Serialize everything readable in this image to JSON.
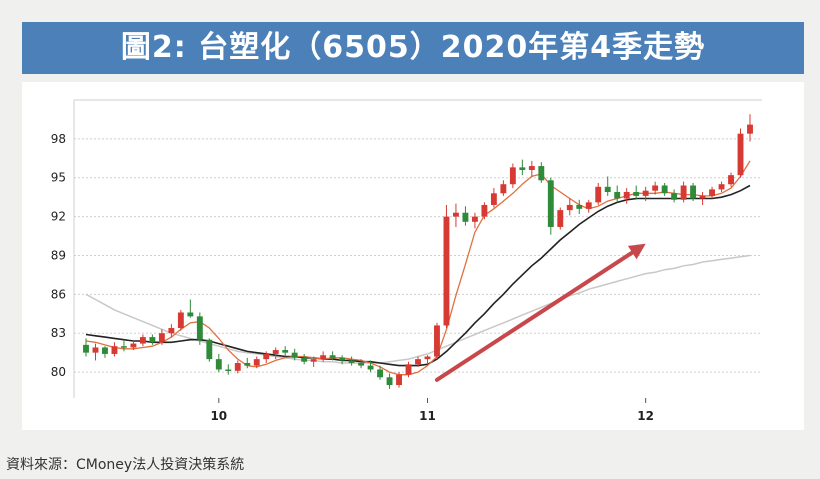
{
  "title": "圖2: 台塑化（6505）2020年第4季走勢",
  "source": "資料來源：CMoney法人投資決策系統",
  "colors": {
    "up": "#d63a32",
    "down": "#2f8a3a",
    "ma_short": "#e07040",
    "ma_mid": "#222222",
    "ma_long": "#c8c8c8",
    "arrow": "#c8474a",
    "grid": "#cfcfcf",
    "title_bg": "#4b80b8"
  },
  "chart_data": {
    "type": "candlestick",
    "ylim": [
      78,
      101
    ],
    "y_ticks": [
      80,
      83,
      86,
      89,
      92,
      95,
      98
    ],
    "x_ticks": [
      {
        "label": "10",
        "index": 14
      },
      {
        "label": "11",
        "index": 36
      },
      {
        "label": "12",
        "index": 59
      }
    ],
    "n": 71,
    "grid": "horizontal",
    "candles": [
      [
        82.1,
        82.6,
        81.2,
        81.5
      ],
      [
        81.5,
        82.2,
        80.9,
        81.9
      ],
      [
        81.9,
        82.0,
        81.1,
        81.4
      ],
      [
        81.4,
        82.3,
        81.2,
        82.0
      ],
      [
        82.0,
        82.5,
        81.6,
        81.9
      ],
      [
        81.9,
        82.4,
        81.7,
        82.2
      ],
      [
        82.2,
        82.9,
        82.0,
        82.7
      ],
      [
        82.7,
        82.9,
        82.1,
        82.3
      ],
      [
        82.3,
        83.3,
        82.1,
        83.0
      ],
      [
        83.0,
        83.7,
        82.7,
        83.4
      ],
      [
        83.4,
        84.8,
        83.2,
        84.6
      ],
      [
        84.6,
        85.6,
        84.2,
        84.3
      ],
      [
        84.3,
        84.6,
        82.1,
        82.5
      ],
      [
        82.5,
        82.6,
        80.8,
        81.0
      ],
      [
        81.0,
        81.4,
        80.0,
        80.2
      ],
      [
        80.2,
        80.6,
        79.8,
        80.1
      ],
      [
        80.1,
        80.9,
        79.9,
        80.7
      ],
      [
        80.7,
        81.1,
        80.3,
        80.5
      ],
      [
        80.5,
        81.2,
        80.3,
        81.0
      ],
      [
        81.0,
        81.6,
        80.7,
        81.4
      ],
      [
        81.4,
        81.9,
        81.0,
        81.7
      ],
      [
        81.7,
        82.0,
        81.2,
        81.5
      ],
      [
        81.5,
        81.8,
        80.9,
        81.1
      ],
      [
        81.1,
        81.4,
        80.6,
        80.8
      ],
      [
        80.8,
        81.2,
        80.4,
        81.0
      ],
      [
        81.0,
        81.6,
        80.8,
        81.3
      ],
      [
        81.3,
        81.6,
        80.9,
        81.1
      ],
      [
        81.1,
        81.3,
        80.6,
        80.9
      ],
      [
        80.9,
        81.2,
        80.5,
        80.7
      ],
      [
        80.7,
        81.0,
        80.3,
        80.5
      ],
      [
        80.5,
        80.9,
        80.0,
        80.2
      ],
      [
        80.2,
        80.5,
        79.4,
        79.6
      ],
      [
        79.6,
        79.9,
        78.7,
        79.0
      ],
      [
        79.0,
        80.0,
        78.8,
        79.8
      ],
      [
        79.8,
        80.8,
        79.6,
        80.6
      ],
      [
        80.6,
        81.2,
        80.4,
        81.0
      ],
      [
        81.0,
        81.3,
        80.7,
        81.2
      ],
      [
        81.2,
        83.8,
        81.0,
        83.6
      ],
      [
        83.6,
        92.9,
        83.4,
        92.0
      ],
      [
        92.0,
        93.0,
        91.2,
        92.3
      ],
      [
        92.3,
        92.8,
        91.3,
        91.6
      ],
      [
        91.6,
        92.3,
        91.1,
        92.0
      ],
      [
        92.0,
        93.1,
        91.8,
        92.9
      ],
      [
        92.9,
        94.2,
        92.7,
        93.8
      ],
      [
        93.8,
        94.8,
        93.6,
        94.5
      ],
      [
        94.5,
        96.1,
        94.2,
        95.8
      ],
      [
        95.8,
        96.4,
        95.2,
        95.6
      ],
      [
        95.6,
        96.3,
        95.1,
        95.9
      ],
      [
        95.9,
        96.2,
        94.6,
        94.8
      ],
      [
        94.8,
        95.0,
        90.6,
        91.2
      ],
      [
        91.2,
        92.7,
        91.0,
        92.5
      ],
      [
        92.5,
        93.4,
        92.1,
        92.9
      ],
      [
        92.9,
        93.3,
        92.2,
        92.6
      ],
      [
        92.6,
        93.3,
        92.3,
        93.1
      ],
      [
        93.1,
        94.6,
        92.9,
        94.3
      ],
      [
        94.3,
        95.1,
        93.6,
        93.9
      ],
      [
        93.9,
        94.4,
        93.1,
        93.4
      ],
      [
        93.4,
        94.2,
        93.0,
        93.9
      ],
      [
        93.9,
        94.4,
        93.3,
        93.6
      ],
      [
        93.6,
        94.3,
        93.2,
        94.0
      ],
      [
        94.0,
        94.7,
        93.7,
        94.4
      ],
      [
        94.4,
        94.6,
        93.6,
        93.8
      ],
      [
        93.8,
        94.1,
        93.1,
        93.3
      ],
      [
        93.3,
        94.7,
        93.1,
        94.4
      ],
      [
        94.4,
        94.6,
        93.2,
        93.4
      ],
      [
        93.4,
        93.9,
        92.9,
        93.6
      ],
      [
        93.6,
        94.3,
        93.4,
        94.1
      ],
      [
        94.1,
        94.7,
        93.9,
        94.5
      ],
      [
        94.5,
        95.4,
        94.3,
        95.2
      ],
      [
        95.2,
        98.8,
        95.0,
        98.4
      ],
      [
        98.4,
        99.9,
        97.8,
        99.1
      ]
    ],
    "ma_short": [
      82.4,
      82.3,
      82.1,
      81.9,
      81.8,
      81.8,
      81.9,
      82.0,
      82.3,
      82.7,
      83.3,
      83.8,
      83.9,
      83.4,
      82.6,
      81.7,
      81.0,
      80.5,
      80.4,
      80.6,
      80.9,
      81.1,
      81.2,
      81.2,
      81.1,
      81.0,
      81.1,
      81.1,
      81.0,
      80.9,
      80.7,
      80.4,
      80.0,
      79.8,
      79.8,
      80.0,
      80.5,
      81.2,
      83.3,
      85.9,
      88.3,
      90.8,
      92.1,
      92.6,
      93.2,
      93.8,
      94.5,
      95.1,
      95.3,
      94.4,
      93.9,
      93.4,
      92.9,
      92.6,
      92.8,
      93.2,
      93.4,
      93.6,
      93.8,
      93.8,
      93.8,
      93.9,
      93.8,
      93.7,
      93.7,
      93.6,
      93.6,
      93.8,
      94.2,
      95.1,
      96.3
    ],
    "ma_mid": [
      82.9,
      82.8,
      82.7,
      82.6,
      82.5,
      82.4,
      82.4,
      82.3,
      82.3,
      82.3,
      82.4,
      82.5,
      82.5,
      82.4,
      82.2,
      82.0,
      81.8,
      81.6,
      81.5,
      81.4,
      81.3,
      81.2,
      81.2,
      81.1,
      81.1,
      81.0,
      81.0,
      80.9,
      80.9,
      80.8,
      80.8,
      80.7,
      80.6,
      80.5,
      80.5,
      80.5,
      80.6,
      81.0,
      81.6,
      82.3,
      83.0,
      83.8,
      84.5,
      85.3,
      86.0,
      86.8,
      87.5,
      88.2,
      88.8,
      89.5,
      90.2,
      90.8,
      91.4,
      91.9,
      92.4,
      92.8,
      93.1,
      93.3,
      93.4,
      93.4,
      93.4,
      93.4,
      93.4,
      93.4,
      93.4,
      93.4,
      93.4,
      93.5,
      93.7,
      94.0,
      94.4
    ],
    "ma_long": [
      86.0,
      85.6,
      85.2,
      84.8,
      84.5,
      84.2,
      83.9,
      83.6,
      83.3,
      83.0,
      82.8,
      82.6,
      82.4,
      82.2,
      82.0,
      81.8,
      81.6,
      81.5,
      81.4,
      81.3,
      81.2,
      81.1,
      81.0,
      80.9,
      80.9,
      80.8,
      80.8,
      80.7,
      80.7,
      80.7,
      80.7,
      80.7,
      80.8,
      80.9,
      81.0,
      81.2,
      81.4,
      81.7,
      82.0,
      82.3,
      82.6,
      82.9,
      83.2,
      83.5,
      83.8,
      84.1,
      84.4,
      84.7,
      85.0,
      85.3,
      85.6,
      85.9,
      86.1,
      86.4,
      86.6,
      86.8,
      87.0,
      87.2,
      87.4,
      87.6,
      87.7,
      87.9,
      88.0,
      88.2,
      88.3,
      88.5,
      88.6,
      88.7,
      88.8,
      88.9,
      89.0
    ],
    "annotation_arrow": {
      "from": [
        37,
        79.4
      ],
      "to": [
        59,
        89.9
      ]
    }
  }
}
